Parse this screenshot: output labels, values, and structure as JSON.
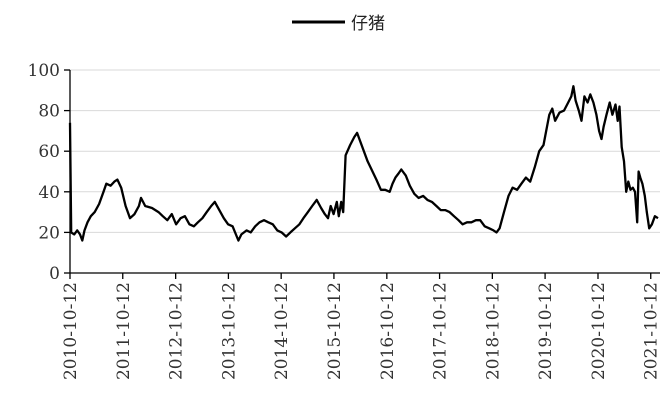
{
  "chart_data": {
    "type": "line",
    "title": "",
    "xlabel": "",
    "ylabel": "",
    "ylim": [
      0,
      100
    ],
    "yticks": [
      0,
      20,
      40,
      60,
      80,
      100
    ],
    "xlim": [
      "2010-10-12",
      "2021-12-15"
    ],
    "xticks": [
      "2010-10-12",
      "2011-10-12",
      "2012-10-12",
      "2013-10-12",
      "2014-10-12",
      "2015-10-12",
      "2016-10-12",
      "2017-10-12",
      "2018-10-12",
      "2019-10-12",
      "2020-10-12",
      "2021-10-12"
    ],
    "grid": "horizontal",
    "legend": "top-center",
    "series": [
      {
        "name": "仔猪",
        "color": "#000000",
        "points": [
          [
            "2010-10-12",
            74
          ],
          [
            "2010-10-20",
            20
          ],
          [
            "2010-11-10",
            19
          ],
          [
            "2010-12-01",
            21
          ],
          [
            "2010-12-20",
            19
          ],
          [
            "2011-01-05",
            16
          ],
          [
            "2011-01-20",
            21
          ],
          [
            "2011-02-10",
            25
          ],
          [
            "2011-03-05",
            28
          ],
          [
            "2011-04-01",
            30
          ],
          [
            "2011-05-01",
            34
          ],
          [
            "2011-06-01",
            40
          ],
          [
            "2011-06-20",
            44
          ],
          [
            "2011-07-20",
            43
          ],
          [
            "2011-08-15",
            45
          ],
          [
            "2011-09-05",
            46
          ],
          [
            "2011-10-01",
            42
          ],
          [
            "2011-11-01",
            33
          ],
          [
            "2011-12-01",
            27
          ],
          [
            "2012-01-01",
            29
          ],
          [
            "2012-02-01",
            33
          ],
          [
            "2012-02-15",
            37
          ],
          [
            "2012-03-15",
            33
          ],
          [
            "2012-05-01",
            32
          ],
          [
            "2012-06-15",
            30
          ],
          [
            "2012-07-15",
            28
          ],
          [
            "2012-08-15",
            26
          ],
          [
            "2012-09-15",
            29
          ],
          [
            "2012-10-15",
            24
          ],
          [
            "2012-11-15",
            27
          ],
          [
            "2012-12-15",
            28
          ],
          [
            "2013-01-15",
            24
          ],
          [
            "2013-02-15",
            23
          ],
          [
            "2013-03-15",
            25
          ],
          [
            "2013-04-15",
            27
          ],
          [
            "2013-05-15",
            30
          ],
          [
            "2013-06-15",
            33
          ],
          [
            "2013-07-10",
            35
          ],
          [
            "2013-08-10",
            31
          ],
          [
            "2013-09-10",
            27
          ],
          [
            "2013-10-10",
            24
          ],
          [
            "2013-11-10",
            23
          ],
          [
            "2013-12-20",
            16
          ],
          [
            "2014-01-10",
            19
          ],
          [
            "2014-02-15",
            21
          ],
          [
            "2014-03-15",
            20
          ],
          [
            "2014-04-15",
            23
          ],
          [
            "2014-05-15",
            25
          ],
          [
            "2014-06-15",
            26
          ],
          [
            "2014-07-15",
            25
          ],
          [
            "2014-08-15",
            24
          ],
          [
            "2014-09-15",
            21
          ],
          [
            "2014-10-15",
            20
          ],
          [
            "2014-11-15",
            18
          ],
          [
            "2014-12-15",
            20
          ],
          [
            "2015-01-15",
            22
          ],
          [
            "2015-02-15",
            24
          ],
          [
            "2015-03-15",
            27
          ],
          [
            "2015-04-15",
            30
          ],
          [
            "2015-05-15",
            33
          ],
          [
            "2015-06-15",
            36
          ],
          [
            "2015-07-15",
            32
          ],
          [
            "2015-08-10",
            29
          ],
          [
            "2015-09-01",
            27
          ],
          [
            "2015-09-20",
            33
          ],
          [
            "2015-10-10",
            29
          ],
          [
            "2015-11-01",
            35
          ],
          [
            "2015-11-15",
            28
          ],
          [
            "2015-12-01",
            35
          ],
          [
            "2015-12-15",
            30
          ],
          [
            "2016-01-01",
            58
          ],
          [
            "2016-02-01",
            63
          ],
          [
            "2016-03-01",
            67
          ],
          [
            "2016-03-20",
            69
          ],
          [
            "2016-06-01",
            55
          ],
          [
            "2016-08-01",
            46
          ],
          [
            "2016-09-01",
            41
          ],
          [
            "2016-10-01",
            41
          ],
          [
            "2016-11-01",
            40
          ],
          [
            "2016-11-20",
            44
          ],
          [
            "2016-12-10",
            47
          ],
          [
            "2017-01-01",
            49
          ],
          [
            "2017-01-20",
            51
          ],
          [
            "2017-02-20",
            48
          ],
          [
            "2017-03-20",
            43
          ],
          [
            "2017-04-20",
            39
          ],
          [
            "2017-05-20",
            37
          ],
          [
            "2017-06-20",
            38
          ],
          [
            "2017-07-20",
            36
          ],
          [
            "2017-08-20",
            35
          ],
          [
            "2017-09-20",
            33
          ],
          [
            "2017-10-20",
            31
          ],
          [
            "2017-11-20",
            31
          ],
          [
            "2017-12-20",
            30
          ],
          [
            "2018-01-20",
            28
          ],
          [
            "2018-02-20",
            26
          ],
          [
            "2018-03-20",
            24
          ],
          [
            "2018-04-20",
            25
          ],
          [
            "2018-05-20",
            25
          ],
          [
            "2018-06-20",
            26
          ],
          [
            "2018-07-20",
            26
          ],
          [
            "2018-08-20",
            23
          ],
          [
            "2018-09-20",
            22
          ],
          [
            "2018-10-20",
            21
          ],
          [
            "2018-11-10",
            20
          ],
          [
            "2018-12-01",
            22
          ],
          [
            "2019-01-01",
            30
          ],
          [
            "2019-02-01",
            38
          ],
          [
            "2019-03-01",
            42
          ],
          [
            "2019-04-01",
            41
          ],
          [
            "2019-05-01",
            44
          ],
          [
            "2019-06-01",
            47
          ],
          [
            "2019-07-01",
            45
          ],
          [
            "2019-08-01",
            52
          ],
          [
            "2019-09-01",
            60
          ],
          [
            "2019-10-01",
            63
          ],
          [
            "2019-10-20",
            70
          ],
          [
            "2019-11-10",
            78
          ],
          [
            "2019-12-01",
            81
          ],
          [
            "2019-12-20",
            75
          ],
          [
            "2020-01-20",
            79
          ],
          [
            "2020-02-20",
            80
          ],
          [
            "2020-03-20",
            84
          ],
          [
            "2020-04-10",
            87
          ],
          [
            "2020-04-25",
            92
          ],
          [
            "2020-05-10",
            85
          ],
          [
            "2020-06-01",
            80
          ],
          [
            "2020-06-20",
            75
          ],
          [
            "2020-07-10",
            87
          ],
          [
            "2020-08-01",
            84
          ],
          [
            "2020-08-20",
            88
          ],
          [
            "2020-09-10",
            84
          ],
          [
            "2020-10-01",
            78
          ],
          [
            "2020-10-20",
            70
          ],
          [
            "2020-11-05",
            66
          ],
          [
            "2020-11-20",
            72
          ],
          [
            "2020-12-10",
            78
          ],
          [
            "2021-01-01",
            84
          ],
          [
            "2021-01-20",
            78
          ],
          [
            "2021-02-10",
            83
          ],
          [
            "2021-02-25",
            75
          ],
          [
            "2021-03-10",
            82
          ],
          [
            "2021-03-25",
            62
          ],
          [
            "2021-04-10",
            55
          ],
          [
            "2021-04-25",
            40
          ],
          [
            "2021-05-10",
            45
          ],
          [
            "2021-05-25",
            41
          ],
          [
            "2021-06-10",
            42
          ],
          [
            "2021-06-25",
            40
          ],
          [
            "2021-07-10",
            25
          ],
          [
            "2021-07-20",
            50
          ],
          [
            "2021-08-01",
            47
          ],
          [
            "2021-08-15",
            44
          ],
          [
            "2021-09-01",
            38
          ],
          [
            "2021-09-15",
            30
          ],
          [
            "2021-10-01",
            22
          ],
          [
            "2021-10-20",
            24
          ],
          [
            "2021-11-10",
            28
          ],
          [
            "2021-12-01",
            27
          ]
        ]
      }
    ]
  }
}
